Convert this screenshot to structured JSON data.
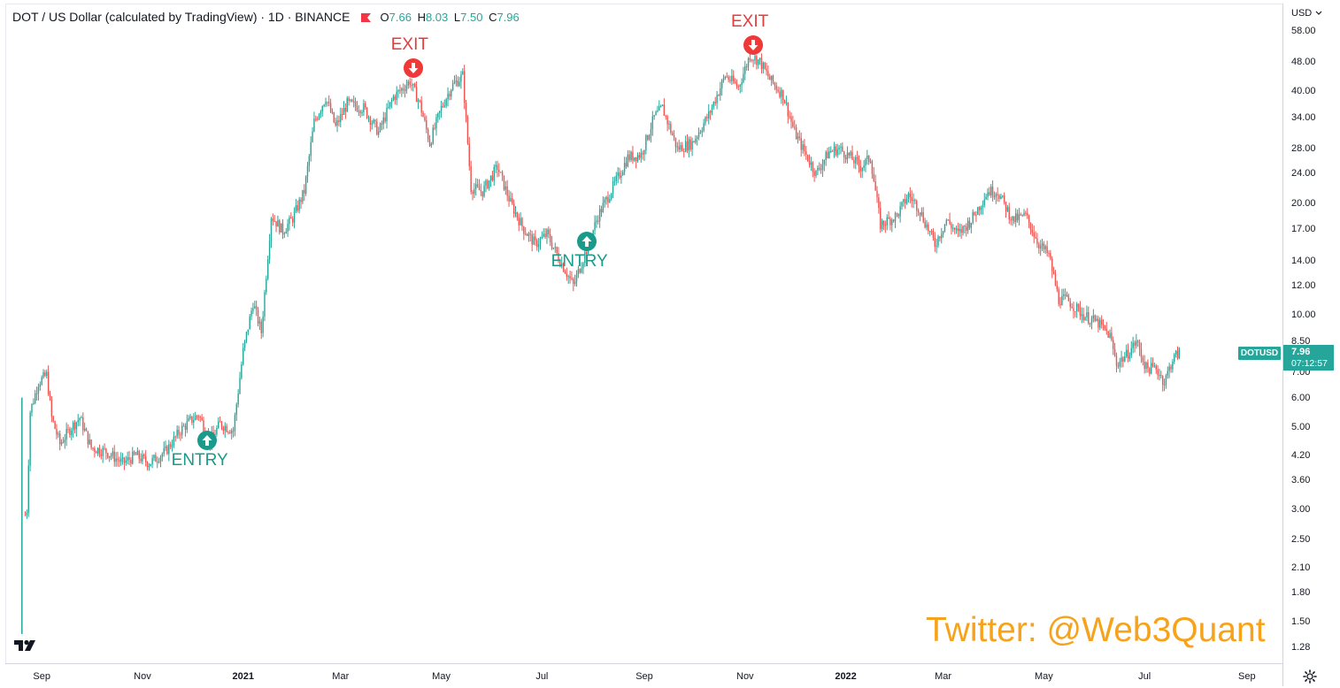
{
  "header": {
    "symbol": "DOT / US Dollar (calculated by TradingView) · 1D · BINANCE",
    "o_label": "O",
    "o": "7.66",
    "h_label": "H",
    "h": "8.03",
    "l_label": "L",
    "l": "7.50",
    "c_label": "C",
    "c": "7.96"
  },
  "currency_menu": "USD",
  "y_ticks": [
    "58.00",
    "48.00",
    "40.00",
    "34.00",
    "28.00",
    "24.00",
    "20.00",
    "17.00",
    "14.00",
    "12.00",
    "10.00",
    "8.50",
    "7.00",
    "6.00",
    "5.00",
    "4.20",
    "3.60",
    "3.00",
    "2.50",
    "2.10",
    "1.80",
    "1.50",
    "1.28"
  ],
  "x_ticks": [
    {
      "label": "Sep",
      "bold": false
    },
    {
      "label": "Nov",
      "bold": false
    },
    {
      "label": "2021",
      "bold": true
    },
    {
      "label": "Mar",
      "bold": false
    },
    {
      "label": "May",
      "bold": false
    },
    {
      "label": "Jul",
      "bold": false
    },
    {
      "label": "Sep",
      "bold": false
    },
    {
      "label": "Nov",
      "bold": false
    },
    {
      "label": "2022",
      "bold": true
    },
    {
      "label": "Mar",
      "bold": false
    },
    {
      "label": "May",
      "bold": false
    },
    {
      "label": "Jul",
      "bold": false
    },
    {
      "label": "Sep",
      "bold": false
    }
  ],
  "price_tag": {
    "symbol": "DOTUSD",
    "price": "7.96",
    "countdown": "07:12:57"
  },
  "signals": [
    {
      "label": "ENTRY",
      "type": "entry",
      "date": "2020-12-10",
      "price": 4.6
    },
    {
      "label": "EXIT",
      "type": "exit",
      "date": "2021-04-14",
      "price": 46
    },
    {
      "label": "ENTRY",
      "type": "entry",
      "date": "2021-07-28",
      "price": 15.8
    },
    {
      "label": "EXIT",
      "type": "exit",
      "date": "2021-11-06",
      "price": 53
    }
  ],
  "watermark": "Twitter: @Web3Quant",
  "colors": {
    "up": "#26a69a",
    "down": "#ef5350",
    "entry": "#1a9a8a",
    "exit": "#e63b3b",
    "watermark": "#f7a21b"
  },
  "chart_data": {
    "type": "candlestick",
    "title": "DOT / US Dollar (calculated by TradingView) · 1D · BINANCE",
    "y_scale": "log",
    "ylim": [
      1.2,
      64
    ],
    "x_range": [
      "2020-08-11",
      "2022-09-22"
    ],
    "grid": false,
    "path": [
      [
        "2020-08-22",
        2.9
      ],
      [
        "2020-08-23",
        3.0
      ],
      [
        "2020-08-25",
        5.5
      ],
      [
        "2020-08-30",
        6.6
      ],
      [
        "2020-09-04",
        6.9
      ],
      [
        "2020-09-07",
        5.3
      ],
      [
        "2020-09-12",
        4.5
      ],
      [
        "2020-09-19",
        5.0
      ],
      [
        "2020-09-24",
        5.3
      ],
      [
        "2020-10-01",
        4.4
      ],
      [
        "2020-10-10",
        4.3
      ],
      [
        "2020-10-20",
        4.0
      ],
      [
        "2020-10-28",
        4.2
      ],
      [
        "2020-11-05",
        4.0
      ],
      [
        "2020-11-15",
        4.3
      ],
      [
        "2020-11-24",
        4.9
      ],
      [
        "2020-11-30",
        5.2
      ],
      [
        "2020-12-05",
        5.4
      ],
      [
        "2020-12-12",
        4.6
      ],
      [
        "2020-12-18",
        5.1
      ],
      [
        "2020-12-26",
        4.9
      ],
      [
        "2021-01-01",
        8.0
      ],
      [
        "2021-01-07",
        10.8
      ],
      [
        "2021-01-12",
        9.0
      ],
      [
        "2021-01-18",
        18.5
      ],
      [
        "2021-01-25",
        16.8
      ],
      [
        "2021-01-31",
        18.2
      ],
      [
        "2021-02-07",
        21.5
      ],
      [
        "2021-02-13",
        33.0
      ],
      [
        "2021-02-20",
        38.5
      ],
      [
        "2021-02-26",
        32.0
      ],
      [
        "2021-03-05",
        37.0
      ],
      [
        "2021-03-15",
        36.0
      ],
      [
        "2021-03-24",
        31.0
      ],
      [
        "2021-04-02",
        38.5
      ],
      [
        "2021-04-12",
        42.5
      ],
      [
        "2021-04-18",
        37.0
      ],
      [
        "2021-04-24",
        29.0
      ],
      [
        "2021-05-01",
        36.0
      ],
      [
        "2021-05-07",
        41.0
      ],
      [
        "2021-05-14",
        44.0
      ],
      [
        "2021-05-19",
        22.0
      ],
      [
        "2021-05-26",
        21.5
      ],
      [
        "2021-06-04",
        25.0
      ],
      [
        "2021-06-12",
        20.0
      ],
      [
        "2021-06-20",
        17.0
      ],
      [
        "2021-06-27",
        15.5
      ],
      [
        "2021-07-04",
        16.5
      ],
      [
        "2021-07-12",
        14.0
      ],
      [
        "2021-07-20",
        12.0
      ],
      [
        "2021-07-28",
        15.0
      ],
      [
        "2021-08-04",
        18.5
      ],
      [
        "2021-08-14",
        22.5
      ],
      [
        "2021-08-22",
        26.5
      ],
      [
        "2021-08-30",
        27.0
      ],
      [
        "2021-09-07",
        34.0
      ],
      [
        "2021-09-12",
        36.0
      ],
      [
        "2021-09-21",
        28.0
      ],
      [
        "2021-09-30",
        29.0
      ],
      [
        "2021-10-10",
        34.5
      ],
      [
        "2021-10-20",
        44.0
      ],
      [
        "2021-10-28",
        41.0
      ],
      [
        "2021-11-04",
        50.0
      ],
      [
        "2021-11-10",
        48.0
      ],
      [
        "2021-11-16",
        43.0
      ],
      [
        "2021-11-24",
        39.0
      ],
      [
        "2021-12-01",
        31.0
      ],
      [
        "2021-12-06",
        28.0
      ],
      [
        "2021-12-14",
        24.0
      ],
      [
        "2021-12-22",
        27.5
      ],
      [
        "2021-12-28",
        28.0
      ],
      [
        "2022-01-04",
        26.5
      ],
      [
        "2022-01-10",
        25.0
      ],
      [
        "2022-01-16",
        26.5
      ],
      [
        "2022-01-22",
        17.5
      ],
      [
        "2022-02-01",
        18.5
      ],
      [
        "2022-02-08",
        21.0
      ],
      [
        "2022-02-14",
        19.5
      ],
      [
        "2022-02-24",
        15.5
      ],
      [
        "2022-03-03",
        18.0
      ],
      [
        "2022-03-10",
        16.5
      ],
      [
        "2022-03-18",
        18.0
      ],
      [
        "2022-03-28",
        21.5
      ],
      [
        "2022-04-03",
        21.5
      ],
      [
        "2022-04-12",
        18.0
      ],
      [
        "2022-04-20",
        18.5
      ],
      [
        "2022-04-28",
        15.5
      ],
      [
        "2022-05-04",
        14.5
      ],
      [
        "2022-05-10",
        11.0
      ],
      [
        "2022-05-15",
        11.0
      ],
      [
        "2022-05-25",
        10.0
      ],
      [
        "2022-06-03",
        9.5
      ],
      [
        "2022-06-10",
        8.8
      ],
      [
        "2022-06-14",
        7.4
      ],
      [
        "2022-06-20",
        7.8
      ],
      [
        "2022-06-26",
        8.5
      ],
      [
        "2022-07-02",
        7.2
      ],
      [
        "2022-07-08",
        7.2
      ],
      [
        "2022-07-13",
        6.6
      ],
      [
        "2022-07-18",
        7.6
      ],
      [
        "2022-07-22",
        7.96
      ]
    ]
  }
}
